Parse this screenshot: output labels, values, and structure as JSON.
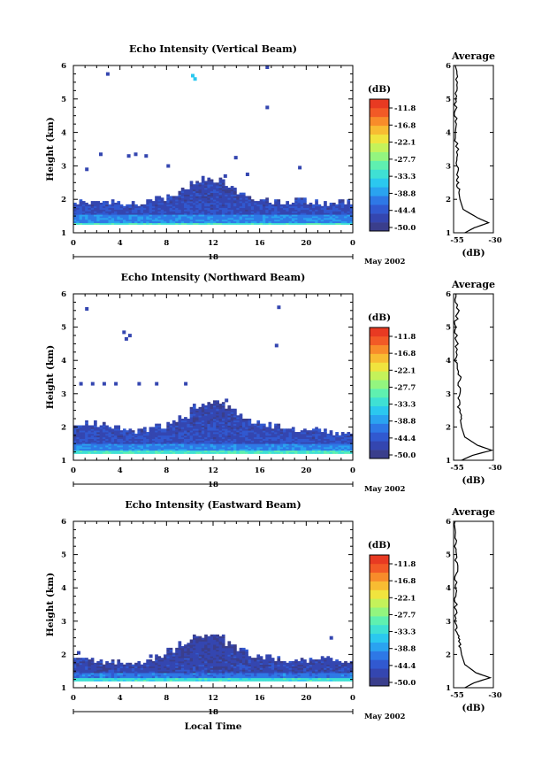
{
  "colormap": [
    "#3a3e8c",
    "#3446b0",
    "#3159d0",
    "#2e78e6",
    "#2aa3f0",
    "#2bc8ef",
    "#3fe0d4",
    "#5ff0b0",
    "#93f57f",
    "#c4f25a",
    "#f0e43e",
    "#f8bc32",
    "#f88c2a",
    "#f25a26",
    "#e83a22"
  ],
  "chart_data": [
    {
      "type": "heatmap",
      "title": "Echo Intensity (Vertical Beam)",
      "ylabel": "Height (km)",
      "xlabel": "",
      "xlim": [
        0,
        24
      ],
      "ylim": [
        1,
        6
      ],
      "x_ticks": [
        "0",
        "4",
        "8",
        "12",
        "16",
        "20",
        "0"
      ],
      "y_ticks": [
        "1",
        "2",
        "3",
        "4",
        "5",
        "6"
      ],
      "date_label": "18",
      "month_label": "May 2002",
      "colorbar": {
        "unit": "(dB)",
        "ticks": [
          "-11.8",
          "-16.8",
          "-22.1",
          "-27.7",
          "-33.3",
          "-38.8",
          "-44.4",
          "-50.0"
        ],
        "range": [
          -53,
          -9
        ]
      },
      "echo_layer": {
        "base_km": 1.3,
        "dense_top_km": 1.55,
        "cloud_top_km": [
          1.9,
          1.9,
          1.95,
          1.9,
          1.8,
          1.85,
          1.9,
          2.0,
          2.1,
          2.3,
          2.5,
          2.6,
          2.55,
          2.3,
          2.1,
          2.0,
          1.95,
          1.9,
          1.9,
          1.95,
          1.9,
          1.85,
          1.9,
          1.9
        ],
        "strong_km": 1.22,
        "mean_db": -47
      },
      "points": [
        [
          2.8,
          5.75
        ],
        [
          16.5,
          5.95
        ],
        [
          10.1,
          5.7
        ],
        [
          10.3,
          5.6
        ],
        [
          16.5,
          4.75
        ],
        [
          2.2,
          3.35
        ],
        [
          4.6,
          3.3
        ],
        [
          5.2,
          3.35
        ],
        [
          6.1,
          3.3
        ],
        [
          1.0,
          2.9
        ],
        [
          8.0,
          3.0
        ],
        [
          13.8,
          3.25
        ],
        [
          19.3,
          2.95
        ],
        [
          12.9,
          2.7
        ],
        [
          14.8,
          2.75
        ]
      ],
      "average": {
        "title": "Average",
        "xlabel": "(dB)",
        "x_ticks": [
          "-55",
          "-30"
        ],
        "xlim": [
          -55,
          -30
        ],
        "heights": [
          1.0,
          1.15,
          1.3,
          1.45,
          1.7,
          2.0,
          2.3,
          2.6,
          3.0,
          3.5,
          4.0,
          4.5,
          5.0,
          5.5,
          6.0
        ],
        "db": [
          -48,
          -42,
          -33,
          -40,
          -49,
          -51,
          -52,
          -52.5,
          -53,
          -52.5,
          -54,
          -53.5,
          -54,
          -53,
          -54
        ]
      }
    },
    {
      "type": "heatmap",
      "title": "Echo Intensity (Northward Beam)",
      "ylabel": "Height (km)",
      "xlabel": "",
      "xlim": [
        0,
        24
      ],
      "ylim": [
        1,
        6
      ],
      "x_ticks": [
        "0",
        "4",
        "8",
        "12",
        "16",
        "20",
        "0"
      ],
      "y_ticks": [
        "1",
        "2",
        "3",
        "4",
        "5",
        "6"
      ],
      "date_label": "18",
      "month_label": "May 2002",
      "colorbar": {
        "unit": "(dB)",
        "ticks": [
          "-11.8",
          "-16.8",
          "-22.1",
          "-27.7",
          "-33.3",
          "-38.8",
          "-44.4",
          "-50.0"
        ],
        "range": [
          -53,
          -9
        ]
      },
      "echo_layer": {
        "base_km": 1.25,
        "dense_top_km": 1.5,
        "cloud_top_km": [
          2.1,
          2.1,
          2.05,
          2.0,
          1.9,
          1.85,
          1.9,
          2.0,
          2.1,
          2.3,
          2.6,
          2.7,
          2.75,
          2.55,
          2.3,
          2.15,
          2.05,
          2.0,
          1.95,
          1.9,
          1.9,
          1.85,
          1.8,
          1.8
        ],
        "strong_km": 1.2,
        "mean_db": -47
      },
      "points": [
        [
          1.0,
          5.55
        ],
        [
          4.2,
          4.85
        ],
        [
          4.7,
          4.75
        ],
        [
          4.4,
          4.65
        ],
        [
          17.5,
          5.6
        ],
        [
          17.3,
          4.45
        ],
        [
          0.5,
          3.3
        ],
        [
          1.5,
          3.3
        ],
        [
          2.5,
          3.3
        ],
        [
          3.5,
          3.3
        ],
        [
          5.5,
          3.3
        ],
        [
          7.0,
          3.3
        ],
        [
          9.5,
          3.3
        ],
        [
          13.0,
          2.8
        ]
      ],
      "average": {
        "title": "Average",
        "xlabel": "(dB)",
        "x_ticks": [
          "-55",
          "-30"
        ],
        "xlim": [
          -55,
          -30
        ],
        "heights": [
          1.0,
          1.15,
          1.3,
          1.45,
          1.7,
          2.0,
          2.3,
          2.6,
          3.0,
          3.5,
          4.0,
          4.5,
          5.0,
          5.5,
          6.0
        ],
        "db": [
          -50,
          -43,
          -31,
          -40,
          -48,
          -50,
          -51,
          -51.5,
          -52,
          -51,
          -53.5,
          -53,
          -54,
          -52.5,
          -53.5
        ]
      }
    },
    {
      "type": "heatmap",
      "title": "Echo Intensity (Eastward Beam)",
      "ylabel": "Height (km)",
      "xlabel": "Local Time",
      "xlim": [
        0,
        24
      ],
      "ylim": [
        1,
        6
      ],
      "x_ticks": [
        "0",
        "4",
        "8",
        "12",
        "16",
        "20",
        "0"
      ],
      "y_ticks": [
        "1",
        "2",
        "3",
        "4",
        "5",
        "6"
      ],
      "date_label": "18",
      "month_label": "May 2002",
      "colorbar": {
        "unit": "(dB)",
        "ticks": [
          "-11.8",
          "-16.8",
          "-22.1",
          "-27.7",
          "-33.3",
          "-38.8",
          "-44.4",
          "-50.0"
        ],
        "range": [
          -53,
          -9
        ]
      },
      "echo_layer": {
        "base_km": 1.25,
        "dense_top_km": 1.45,
        "cloud_top_km": [
          1.8,
          1.8,
          1.75,
          1.75,
          1.7,
          1.75,
          1.8,
          1.9,
          2.1,
          2.3,
          2.5,
          2.55,
          2.5,
          2.3,
          2.1,
          1.95,
          1.9,
          1.85,
          1.8,
          1.8,
          1.8,
          1.85,
          1.8,
          1.8
        ],
        "strong_km": 1.2,
        "mean_db": -48
      },
      "points": [
        [
          0.3,
          2.05
        ],
        [
          22.0,
          2.5
        ],
        [
          6.5,
          1.95
        ],
        [
          10.4,
          1.95
        ]
      ],
      "average": {
        "title": "Average",
        "xlabel": "(dB)",
        "x_ticks": [
          "-55",
          "-30"
        ],
        "xlim": [
          -55,
          -30
        ],
        "heights": [
          1.0,
          1.15,
          1.3,
          1.45,
          1.7,
          2.0,
          2.3,
          2.6,
          3.0,
          3.5,
          4.0,
          4.5,
          5.0,
          5.5,
          6.0
        ],
        "db": [
          -48,
          -42,
          -32,
          -41,
          -48,
          -50,
          -51,
          -53,
          -54,
          -53.5,
          -54,
          -53,
          -54,
          -53.5,
          -54
        ]
      }
    }
  ]
}
